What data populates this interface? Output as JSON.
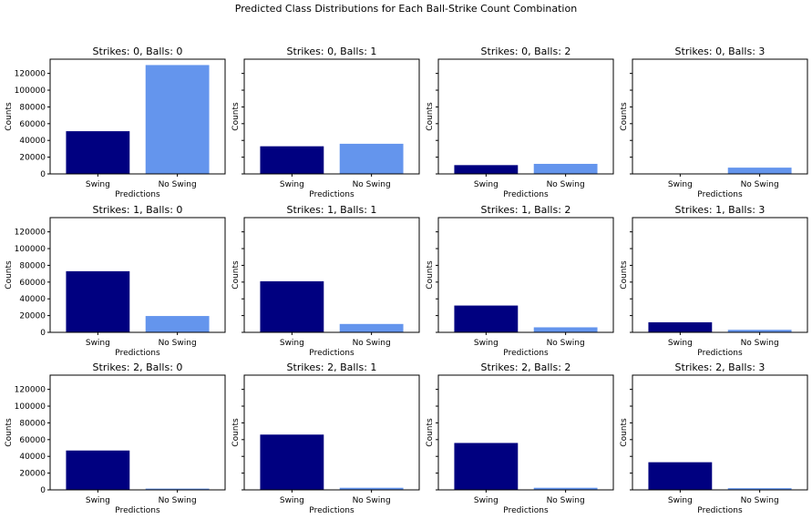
{
  "figure": {
    "title": "Predicted Class Distributions for Each Ball-Strike Count Combination"
  },
  "colors": {
    "swing": "#000080",
    "no_swing": "#6495ed"
  },
  "chart_data": [
    {
      "type": "bar",
      "title": "Strikes: 0, Balls: 0",
      "categories": [
        "Swing",
        "No Swing"
      ],
      "values": [
        51000,
        130000
      ],
      "xlabel": "Predictions",
      "ylabel": "Counts",
      "ylim": [
        0,
        137000
      ],
      "yticks": [
        0,
        20000,
        40000,
        60000,
        80000,
        100000,
        120000
      ],
      "show_yticklabels": true
    },
    {
      "type": "bar",
      "title": "Strikes: 0, Balls: 1",
      "categories": [
        "Swing",
        "No Swing"
      ],
      "values": [
        33000,
        36000
      ],
      "xlabel": "Predictions",
      "ylabel": "Counts",
      "ylim": [
        0,
        137000
      ],
      "yticks": [
        0,
        20000,
        40000,
        60000,
        80000,
        100000,
        120000
      ],
      "show_yticklabels": false
    },
    {
      "type": "bar",
      "title": "Strikes: 0, Balls: 2",
      "categories": [
        "Swing",
        "No Swing"
      ],
      "values": [
        10500,
        12000
      ],
      "xlabel": "Predictions",
      "ylabel": "Counts",
      "ylim": [
        0,
        137000
      ],
      "yticks": [
        0,
        20000,
        40000,
        60000,
        80000,
        100000,
        120000
      ],
      "show_yticklabels": false
    },
    {
      "type": "bar",
      "title": "Strikes: 0, Balls: 3",
      "categories": [
        "Swing",
        "No Swing"
      ],
      "values": [
        300,
        7500
      ],
      "xlabel": "Predictions",
      "ylabel": "Counts",
      "ylim": [
        0,
        137000
      ],
      "yticks": [
        0,
        20000,
        40000,
        60000,
        80000,
        100000,
        120000
      ],
      "show_yticklabels": false
    },
    {
      "type": "bar",
      "title": "Strikes: 1, Balls: 0",
      "categories": [
        "Swing",
        "No Swing"
      ],
      "values": [
        73000,
        19500
      ],
      "xlabel": "Predictions",
      "ylabel": "Counts",
      "ylim": [
        0,
        137000
      ],
      "yticks": [
        0,
        20000,
        40000,
        60000,
        80000,
        100000,
        120000
      ],
      "show_yticklabels": true
    },
    {
      "type": "bar",
      "title": "Strikes: 1, Balls: 1",
      "categories": [
        "Swing",
        "No Swing"
      ],
      "values": [
        61000,
        10000
      ],
      "xlabel": "Predictions",
      "ylabel": "Counts",
      "ylim": [
        0,
        137000
      ],
      "yticks": [
        0,
        20000,
        40000,
        60000,
        80000,
        100000,
        120000
      ],
      "show_yticklabels": false
    },
    {
      "type": "bar",
      "title": "Strikes: 1, Balls: 2",
      "categories": [
        "Swing",
        "No Swing"
      ],
      "values": [
        32000,
        6000
      ],
      "xlabel": "Predictions",
      "ylabel": "Counts",
      "ylim": [
        0,
        137000
      ],
      "yticks": [
        0,
        20000,
        40000,
        60000,
        80000,
        100000,
        120000
      ],
      "show_yticklabels": false
    },
    {
      "type": "bar",
      "title": "Strikes: 1, Balls: 3",
      "categories": [
        "Swing",
        "No Swing"
      ],
      "values": [
        12000,
        3000
      ],
      "xlabel": "Predictions",
      "ylabel": "Counts",
      "ylim": [
        0,
        137000
      ],
      "yticks": [
        0,
        20000,
        40000,
        60000,
        80000,
        100000,
        120000
      ],
      "show_yticklabels": false
    },
    {
      "type": "bar",
      "title": "Strikes: 2, Balls: 0",
      "categories": [
        "Swing",
        "No Swing"
      ],
      "values": [
        47000,
        1500
      ],
      "xlabel": "Predictions",
      "ylabel": "Counts",
      "ylim": [
        0,
        137000
      ],
      "yticks": [
        0,
        20000,
        40000,
        60000,
        80000,
        100000,
        120000
      ],
      "show_yticklabels": true
    },
    {
      "type": "bar",
      "title": "Strikes: 2, Balls: 1",
      "categories": [
        "Swing",
        "No Swing"
      ],
      "values": [
        66000,
        2500
      ],
      "xlabel": "Predictions",
      "ylabel": "Counts",
      "ylim": [
        0,
        137000
      ],
      "yticks": [
        0,
        20000,
        40000,
        60000,
        80000,
        100000,
        120000
      ],
      "show_yticklabels": false
    },
    {
      "type": "bar",
      "title": "Strikes: 2, Balls: 2",
      "categories": [
        "Swing",
        "No Swing"
      ],
      "values": [
        56000,
        2500
      ],
      "xlabel": "Predictions",
      "ylabel": "Counts",
      "ylim": [
        0,
        137000
      ],
      "yticks": [
        0,
        20000,
        40000,
        60000,
        80000,
        100000,
        120000
      ],
      "show_yticklabels": false
    },
    {
      "type": "bar",
      "title": "Strikes: 2, Balls: 3",
      "categories": [
        "Swing",
        "No Swing"
      ],
      "values": [
        33000,
        2000
      ],
      "xlabel": "Predictions",
      "ylabel": "Counts",
      "ylim": [
        0,
        137000
      ],
      "yticks": [
        0,
        20000,
        40000,
        60000,
        80000,
        100000,
        120000
      ],
      "show_yticklabels": false
    }
  ]
}
